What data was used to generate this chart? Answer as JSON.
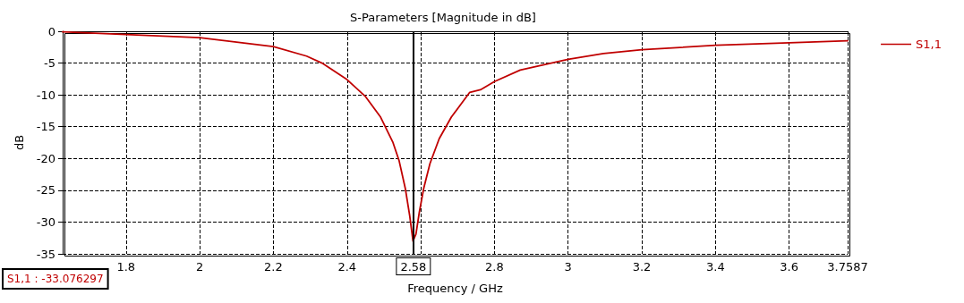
{
  "chart_data": {
    "type": "line",
    "title": "S-Parameters [Magnitude in dB]",
    "xlabel": "Frequency / GHz",
    "ylabel": "dB",
    "x": [
      1.628,
      1.8,
      2.0,
      2.115,
      2.2,
      2.29,
      2.332,
      2.4,
      2.449,
      2.491,
      2.524,
      2.541,
      2.558,
      2.57,
      2.579,
      2.587,
      2.596,
      2.608,
      2.625,
      2.65,
      2.683,
      2.733,
      2.762,
      2.8,
      2.87,
      3.0,
      3.096,
      3.2,
      3.4,
      3.6,
      3.7587
    ],
    "series": [
      {
        "name": "S1,1",
        "color": "#c00000",
        "values": [
          -0.1,
          -0.5,
          -1.0,
          -1.8,
          -2.4,
          -3.9,
          -5.0,
          -7.6,
          -10.2,
          -13.5,
          -17.4,
          -20.3,
          -24.7,
          -29,
          -33,
          -31.9,
          -28.5,
          -24.7,
          -20.8,
          -16.9,
          -13.5,
          -9.6,
          -9.2,
          -7.9,
          -6.1,
          -4.4,
          -3.5,
          -2.9,
          -2.2,
          -1.8,
          -1.5
        ]
      }
    ],
    "xlim": [
      1.628,
      3.7587
    ],
    "xticks": [
      1.8,
      2,
      2.2,
      2.4,
      {
        "value": 2.6,
        "label": null
      },
      2.8,
      3,
      3.2,
      3.4,
      3.6,
      3.7587
    ],
    "ylim": [
      -35,
      0
    ],
    "yticks": [
      -35,
      -30,
      -25,
      -20,
      -15,
      -10,
      -5,
      0
    ],
    "ref_lines": [
      {
        "axis": "x",
        "value": 2.58,
        "label": "2.58",
        "color": "#000000",
        "line_style": "solid"
      }
    ],
    "annotations": [
      "S1,1 : -33.076297"
    ],
    "grid": true,
    "legend": "right",
    "marker": "none",
    "line_style": "solid"
  }
}
